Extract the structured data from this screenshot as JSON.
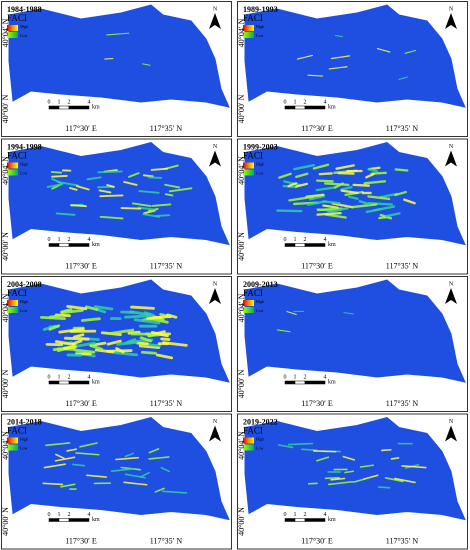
{
  "panels": [
    {
      "period": "1984-1988"
    },
    {
      "period": "1989-1993"
    },
    {
      "period": "1994-1998"
    },
    {
      "period": "1999-2003"
    },
    {
      "period": "2004-2008"
    },
    {
      "period": "2009-2013"
    },
    {
      "period": "2014-2018"
    },
    {
      "period": "2019-2022"
    }
  ],
  "labels": {
    "index": "FACI",
    "high": "High",
    "low": "Low",
    "north": "N",
    "lat_top": "40°04′ N",
    "lat_bottom": "40°00′ N",
    "lon_left": "117°30′ E",
    "lon_right": "117°35′ N",
    "scale_ticks": [
      "0",
      "1",
      "2",
      "4"
    ],
    "scale_unit": "km"
  }
}
